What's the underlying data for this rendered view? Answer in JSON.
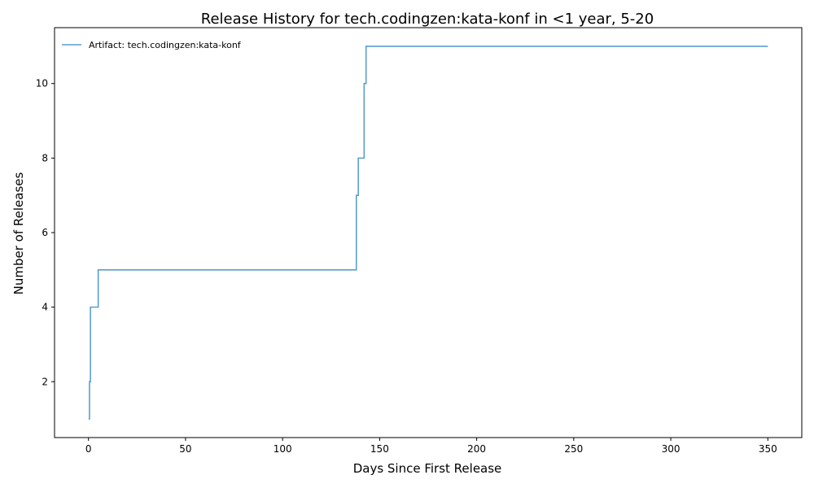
{
  "chart_data": {
    "type": "line",
    "step": "post",
    "title": "Release History for tech.codingzen:kata-konf in <1 year, 5-20",
    "xlabel": "Days Since First Release",
    "ylabel": "Number of Releases",
    "xlim": [
      -17.5,
      367.5
    ],
    "ylim": [
      0.5,
      11.5
    ],
    "xticks": [
      0,
      50,
      100,
      150,
      200,
      250,
      300,
      350
    ],
    "yticks": [
      2,
      4,
      6,
      8,
      10
    ],
    "grid": false,
    "legend": "top-left",
    "series": [
      {
        "name": "Artifact: tech.codingzen:kata-konf",
        "color": "#5b9fd0",
        "x": [
          0,
          0.5,
          1,
          5,
          138,
          139,
          142,
          143,
          350
        ],
        "y": [
          1,
          2,
          4,
          5,
          7,
          8,
          10,
          11,
          11
        ]
      }
    ]
  }
}
